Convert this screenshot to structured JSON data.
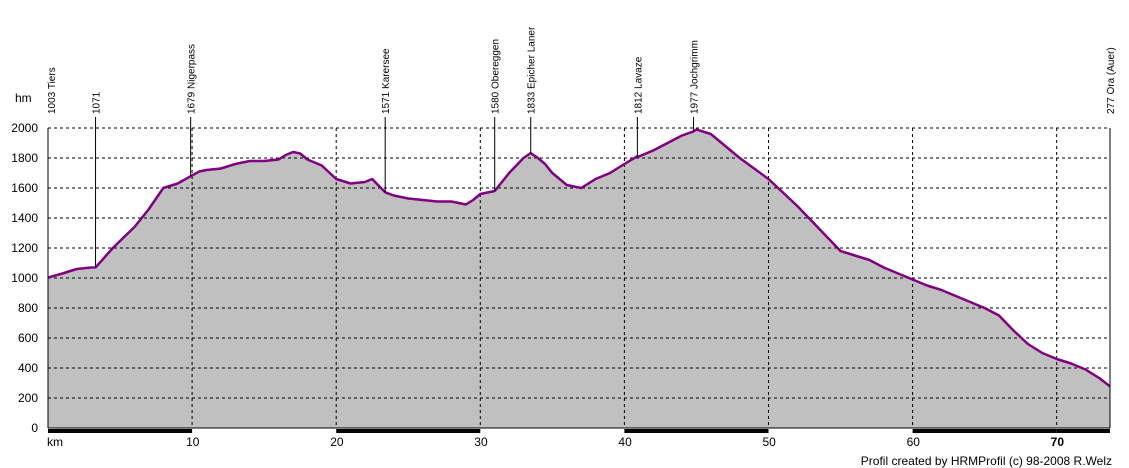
{
  "chart_data": {
    "type": "area",
    "ylabel": "hm",
    "xlabel": "km",
    "xlim": [
      0,
      73.7
    ],
    "ylim": [
      0,
      2000
    ],
    "grid": true,
    "y_ticks": [
      "0",
      "200",
      "400",
      "600",
      "800",
      "1000",
      "1200",
      "1400",
      "1600",
      "1800",
      "2000"
    ],
    "x_ticks": [
      "10",
      "20",
      "30",
      "40",
      "50",
      "60",
      "70"
    ],
    "x_tick_values": [
      10,
      20,
      30,
      40,
      50,
      60,
      70
    ],
    "y_tick_values": [
      0,
      200,
      400,
      600,
      800,
      1000,
      1200,
      1400,
      1600,
      1800,
      2000
    ],
    "waypoints": [
      {
        "km": 0.0,
        "label": "1003  Tiers"
      },
      {
        "km": 3.3,
        "label": "1071"
      },
      {
        "km": 9.9,
        "label": "1679  Nigerpass"
      },
      {
        "km": 23.4,
        "label": "1571  Karersee"
      },
      {
        "km": 31.0,
        "label": "1580  Obereggen"
      },
      {
        "km": 33.5,
        "label": "1833  Epicher Laner"
      },
      {
        "km": 40.9,
        "label": "1812  Lavaze"
      },
      {
        "km": 44.8,
        "label": "1977  Jochgrimm"
      },
      {
        "km": 73.7,
        "label": "277  Ora (Auer)"
      }
    ],
    "series": [
      {
        "x": [
          0,
          1,
          2,
          3,
          3.3,
          4.5,
          6,
          7,
          8,
          9,
          9.9,
          10.5,
          11,
          12,
          13,
          14,
          15,
          16,
          16.5,
          17,
          17.5,
          18,
          19,
          20,
          21,
          22,
          22.5,
          23.4,
          24,
          25,
          26,
          27,
          28,
          28.5,
          29,
          29.5,
          30,
          31,
          32,
          33,
          33.5,
          34,
          34.5,
          35,
          36,
          37,
          38,
          39,
          40,
          40.9,
          41,
          42,
          43,
          44,
          44.8,
          45,
          46,
          47,
          48,
          49,
          50,
          51,
          52,
          53,
          54,
          55,
          56,
          57,
          58,
          59,
          60,
          61,
          62,
          63,
          64,
          65,
          66,
          67,
          68,
          69,
          70,
          71,
          72,
          73,
          73.7
        ],
        "y": [
          1003,
          1030,
          1060,
          1070,
          1071,
          1200,
          1340,
          1460,
          1600,
          1630,
          1679,
          1710,
          1720,
          1730,
          1760,
          1780,
          1780,
          1790,
          1820,
          1840,
          1830,
          1790,
          1750,
          1660,
          1630,
          1640,
          1660,
          1571,
          1550,
          1530,
          1520,
          1510,
          1510,
          1500,
          1490,
          1520,
          1560,
          1580,
          1700,
          1800,
          1833,
          1800,
          1760,
          1700,
          1620,
          1600,
          1660,
          1700,
          1760,
          1812,
          1810,
          1850,
          1900,
          1950,
          1977,
          1990,
          1960,
          1880,
          1800,
          1730,
          1660,
          1570,
          1480,
          1380,
          1280,
          1180,
          1150,
          1120,
          1070,
          1030,
          990,
          950,
          920,
          880,
          840,
          800,
          750,
          650,
          560,
          500,
          460,
          430,
          390,
          330,
          277
        ]
      }
    ],
    "colors": {
      "fill": "#c0c0c0",
      "line": "#800080",
      "grid": "#000000",
      "axis_bar": "#000000"
    }
  },
  "footer": {
    "credit": "Profil created by HRMProfil (c) 98-2008 R.Welz"
  }
}
